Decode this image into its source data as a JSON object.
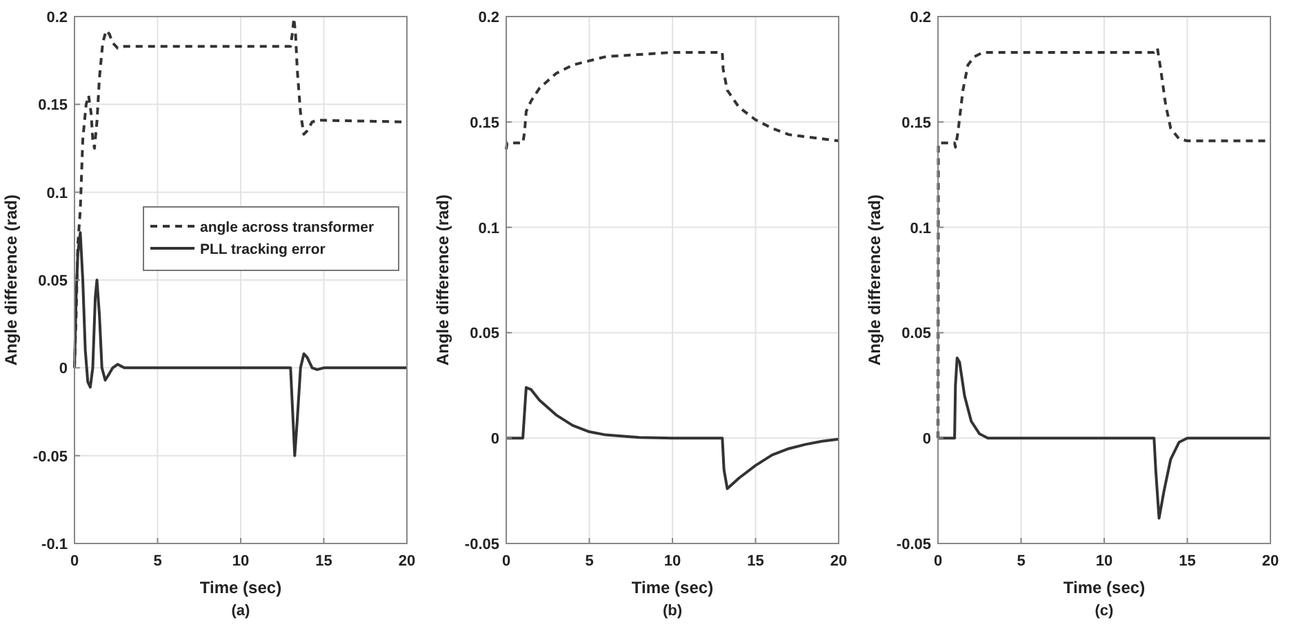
{
  "chart_data": [
    {
      "type": "line",
      "xlabel": "Time (sec)",
      "ylabel": "Angle difference (rad)",
      "xlim": [
        0,
        20
      ],
      "ylim": [
        -0.1,
        0.2
      ],
      "xticks": [
        0,
        5,
        10,
        15,
        20
      ],
      "yticks": [
        -0.1,
        -0.05,
        0,
        0.05,
        0.1,
        0.15,
        0.2
      ],
      "grid": true,
      "legend": "right",
      "annotations": [
        "(a)"
      ],
      "series": [
        {
          "name": "angle across transformer",
          "color": "#333333",
          "line_style": "dashed",
          "x": [
            0,
            0.1,
            0.2,
            0.35,
            0.5,
            0.7,
            0.85,
            1.0,
            1.1,
            1.2,
            1.35,
            1.5,
            1.7,
            1.9,
            2.1,
            2.3,
            2.6,
            3,
            13.0,
            13.1,
            13.2,
            13.3,
            13.4,
            13.6,
            13.8,
            14.0,
            14.3,
            14.6,
            20
          ],
          "values": [
            0,
            0.03,
            0.07,
            0.09,
            0.13,
            0.15,
            0.155,
            0.145,
            0.13,
            0.125,
            0.14,
            0.165,
            0.185,
            0.192,
            0.19,
            0.185,
            0.182,
            0.183,
            0.183,
            0.19,
            0.199,
            0.19,
            0.17,
            0.145,
            0.133,
            0.135,
            0.14,
            0.141,
            0.14
          ]
        },
        {
          "name": "PLL tracking error",
          "color": "#333333",
          "line_style": "solid",
          "x": [
            0,
            0.1,
            0.2,
            0.35,
            0.5,
            0.65,
            0.8,
            0.95,
            1.1,
            1.25,
            1.35,
            1.5,
            1.65,
            1.85,
            2.05,
            2.3,
            2.6,
            3,
            13.0,
            13.1,
            13.25,
            13.4,
            13.6,
            13.8,
            14.0,
            14.3,
            14.6,
            15,
            20
          ],
          "values": [
            0,
            0.04,
            0.065,
            0.077,
            0.05,
            0.01,
            -0.008,
            -0.011,
            0.0,
            0.04,
            0.05,
            0.03,
            0.0,
            -0.007,
            -0.004,
            0.0,
            0.002,
            0,
            0,
            -0.02,
            -0.05,
            -0.03,
            0.0,
            0.008,
            0.006,
            0.0,
            -0.001,
            0,
            0
          ]
        }
      ]
    },
    {
      "type": "line",
      "xlabel": "Time (sec)",
      "ylabel": "Angle difference (rad)",
      "xlim": [
        0,
        20
      ],
      "ylim": [
        -0.05,
        0.2
      ],
      "xticks": [
        0,
        5,
        10,
        15,
        20
      ],
      "yticks": [
        -0.05,
        0,
        0.05,
        0.1,
        0.15,
        0.2
      ],
      "grid": true,
      "annotations": [
        "(b)"
      ],
      "series": [
        {
          "color": "#333333",
          "line_style": "dashed",
          "x": [
            0,
            0.05,
            1.0,
            1.1,
            1.2,
            1.5,
            2,
            3,
            4,
            5,
            6,
            8,
            10,
            13,
            13.05,
            13.3,
            14,
            15,
            16,
            17,
            18,
            19,
            20
          ],
          "values": [
            0.137,
            0.14,
            0.14,
            0.145,
            0.155,
            0.16,
            0.166,
            0.173,
            0.177,
            0.179,
            0.181,
            0.182,
            0.183,
            0.183,
            0.175,
            0.165,
            0.157,
            0.151,
            0.147,
            0.144,
            0.143,
            0.142,
            0.141
          ]
        },
        {
          "color": "#333333",
          "line_style": "solid",
          "x": [
            0,
            1.0,
            1.2,
            1.5,
            2,
            3,
            4,
            5,
            6,
            8,
            10,
            13,
            13.1,
            13.3,
            14,
            15,
            16,
            17,
            18,
            19,
            20
          ],
          "values": [
            0,
            0,
            0.024,
            0.023,
            0.018,
            0.011,
            0.006,
            0.003,
            0.0015,
            0.0003,
            0,
            0,
            -0.015,
            -0.024,
            -0.019,
            -0.013,
            -0.008,
            -0.005,
            -0.003,
            -0.0015,
            -0.0005
          ]
        }
      ]
    },
    {
      "type": "line",
      "xlabel": "Time (sec)",
      "ylabel": "Angle difference (rad)",
      "xlim": [
        0,
        20
      ],
      "ylim": [
        -0.05,
        0.2
      ],
      "xticks": [
        0,
        5,
        10,
        15,
        20
      ],
      "yticks": [
        -0.05,
        0,
        0.05,
        0.1,
        0.15,
        0.2
      ],
      "grid": true,
      "annotations": [
        "(c)"
      ],
      "series": [
        {
          "color": "#333333",
          "line_style": "dashed",
          "x": [
            0,
            0.02,
            1.0,
            1.05,
            1.2,
            1.5,
            1.8,
            2.2,
            2.7,
            13,
            13.2,
            13.4,
            13.7,
            14.0,
            14.5,
            15,
            20
          ],
          "values": [
            0,
            0.14,
            0.14,
            0.138,
            0.145,
            0.165,
            0.177,
            0.181,
            0.183,
            0.183,
            0.185,
            0.175,
            0.158,
            0.147,
            0.142,
            0.141,
            0.141
          ]
        },
        {
          "color": "#333333",
          "line_style": "solid",
          "x": [
            0,
            1.0,
            1.05,
            1.15,
            1.3,
            1.6,
            2,
            2.5,
            3,
            13,
            13.1,
            13.3,
            13.6,
            14,
            14.5,
            15,
            20
          ],
          "values": [
            0,
            0,
            0.025,
            0.038,
            0.036,
            0.02,
            0.008,
            0.002,
            0,
            0,
            -0.015,
            -0.038,
            -0.025,
            -0.01,
            -0.002,
            0,
            0
          ]
        }
      ]
    }
  ]
}
